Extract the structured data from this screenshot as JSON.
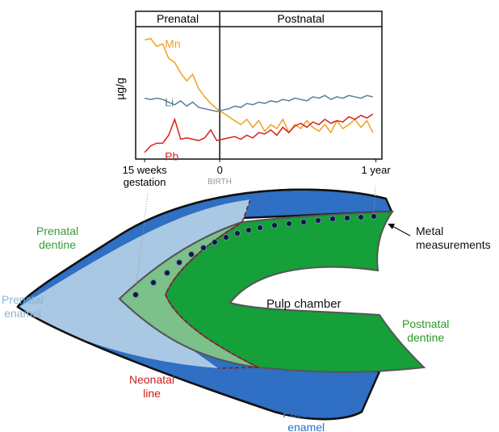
{
  "chart_data": {
    "type": "line",
    "ylabel": "µg/g",
    "periods": [
      "Prenatal",
      "Postnatal"
    ],
    "annotations": [
      {
        "text": "BIRTH",
        "x": 0
      }
    ],
    "x": [
      -25,
      -23,
      -21,
      -19,
      -17,
      -15,
      -13,
      -11,
      -9,
      -7,
      -5,
      -3,
      -1,
      1,
      3,
      5,
      7,
      9,
      11,
      13,
      15,
      17,
      19,
      21,
      23,
      25,
      27,
      29,
      31,
      33,
      35,
      37,
      39,
      41,
      43,
      45,
      47,
      49,
      51
    ],
    "xlim": [
      -28,
      54
    ],
    "xticks": [
      {
        "value": -25,
        "label": "15 weeks\ngestation"
      },
      0,
      {
        "value": 52,
        "label": "1 year"
      }
    ],
    "ylim": [
      0,
      100
    ],
    "series": [
      {
        "name": "Mn",
        "color": "#f0a020",
        "values": [
          90,
          91,
          85,
          87,
          76,
          73,
          65,
          59,
          64,
          53,
          47,
          42,
          38,
          35,
          32,
          29,
          26,
          30,
          24,
          29,
          21,
          26,
          23,
          30,
          20,
          26,
          23,
          29,
          24,
          21,
          26,
          20,
          29,
          23,
          26,
          30,
          24,
          29,
          20
        ]
      },
      {
        "name": "Li",
        "color": "#5b7f8f",
        "values": [
          46,
          45,
          46,
          45,
          43,
          41,
          44,
          40,
          43,
          39,
          38,
          37,
          36,
          37,
          38,
          40,
          39,
          42,
          41,
          43,
          42,
          44,
          43,
          45,
          44,
          46,
          45,
          44,
          47,
          46,
          48,
          45,
          47,
          46,
          48,
          47,
          46,
          48,
          47
        ]
      },
      {
        "name": "Pb",
        "color": "#d8201c",
        "values": [
          5,
          10,
          12,
          12,
          18,
          30,
          15,
          16,
          15,
          14,
          16,
          22,
          14,
          15,
          16,
          17,
          15,
          18,
          16,
          20,
          19,
          22,
          18,
          24,
          20,
          25,
          27,
          24,
          28,
          26,
          30,
          27,
          29,
          28,
          32,
          30,
          33,
          31,
          34
        ]
      }
    ]
  },
  "diagram": {
    "labels": {
      "prenatal_dentine": "Prenatal\ndentine",
      "prenatal_enamel": "Prenatal\nenamel",
      "neonatal_line": "Neonatal\nline",
      "pulp_chamber": "Pulp chamber",
      "postnatal_dentine": "Postnatal\ndentine",
      "postnatal_enamel": "Postnatal\nenamel",
      "metal_measurements": "Metal\nmeasurements"
    }
  }
}
